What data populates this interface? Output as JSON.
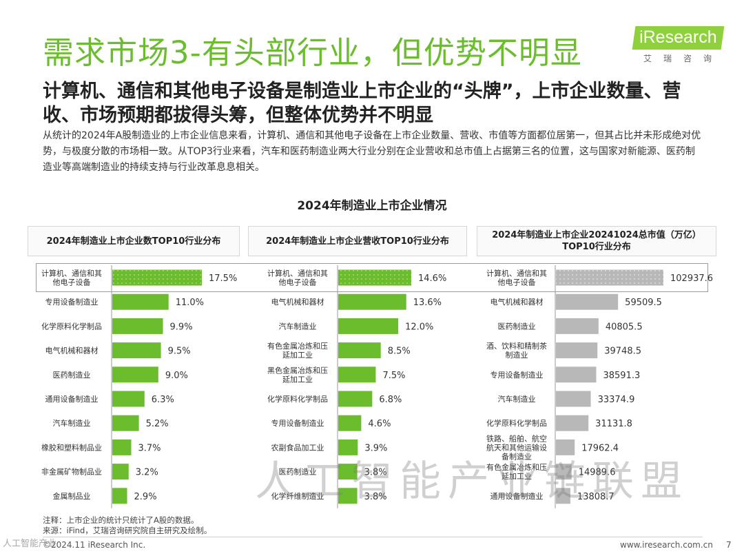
{
  "header": {
    "title": "需求市场3-有头部行业，但优势不明显",
    "logo_text": "iResearch",
    "logo_sub": "艾瑞咨询"
  },
  "subtitle": "计算机、通信和其他电子设备是制造业上市企业的“头牌”，上市企业数量、营收、市场预期都拔得头筹，但整体优势并不明显",
  "body": "从统计的2024年A股制造业的上市企业信息来看，计算机、通信和其他电子设备在上市企业数量、营收、市值等方面都位居第一，但其占比并未形成绝对优势，与极度分散的市场相一致。从TOP3行业来看，汽车和医药制造业两大行业分别在企业营收和总市值上占据第三名的位置，这与国家对新能源、医药制造业等高端制造业的持续支持与行业改革息息相关。",
  "figure_title": "2024年制造业上市企业情况",
  "colors": {
    "green": "#6cbd2e",
    "green_dark": "#5aab22",
    "gray": "#b8b8b8",
    "gray_dark": "#a8a8a8"
  },
  "chart_data": [
    {
      "type": "bar",
      "orientation": "horizontal",
      "title": "2024年制造业上市企业数TOP10行业分布",
      "categories": [
        "计算机、通信和其他电子设备",
        "专用设备制造业",
        "化学原料化学制品",
        "电气机械和器材",
        "医药制造业",
        "通用设备制造业",
        "汽车制造业",
        "橡胶和塑料制品业",
        "非金属矿物制品业",
        "金属制品业"
      ],
      "category_lines": [
        [
          "计算机、通信和其",
          "他电子设备"
        ],
        [
          "专用设备制造业"
        ],
        [
          "化学原料化学制品"
        ],
        [
          "电气机械和器材"
        ],
        [
          "医药制造业"
        ],
        [
          "通用设备制造业"
        ],
        [
          "汽车制造业"
        ],
        [
          "橡胶和塑料制品业"
        ],
        [
          "非金属矿物制品业"
        ],
        [
          "金属制品业"
        ]
      ],
      "values": [
        17.5,
        11.0,
        9.9,
        9.5,
        9.0,
        6.3,
        5.2,
        3.7,
        3.2,
        2.9
      ],
      "labels": [
        "17.5%",
        "11.0%",
        "9.9%",
        "9.5%",
        "9.0%",
        "6.3%",
        "5.2%",
        "3.7%",
        "3.2%",
        "2.9%"
      ],
      "color": "#6cbd2e",
      "max": 17.5
    },
    {
      "type": "bar",
      "orientation": "horizontal",
      "title": "2024年制造业上市企业营收TOP10行业分布",
      "categories": [
        "计算机、通信和其他电子设备",
        "电气机械和器材",
        "汽车制造业",
        "有色金属冶炼和压延加工业",
        "黑色金属冶炼和压延加工业",
        "化学原料化学制品",
        "专用设备制造业",
        "农副食品加工业",
        "医药制造业",
        "化学纤维制造业"
      ],
      "category_lines": [
        [
          "计算机、通信和其",
          "他电子设备"
        ],
        [
          "电气机械和器材"
        ],
        [
          "汽车制造业"
        ],
        [
          "有色金属冶炼和压",
          "延加工业"
        ],
        [
          "黑色金属冶炼和压",
          "延加工业"
        ],
        [
          "化学原料化学制品"
        ],
        [
          "专用设备制造业"
        ],
        [
          "农副食品加工业"
        ],
        [
          "医药制造业"
        ],
        [
          "化学纤维制造业"
        ]
      ],
      "values": [
        14.6,
        13.6,
        12.0,
        8.5,
        7.5,
        6.8,
        4.6,
        3.9,
        3.8,
        3.8
      ],
      "labels": [
        "14.6%",
        "13.6%",
        "12.0%",
        "8.5%",
        "7.5%",
        "6.8%",
        "4.6%",
        "3.9%",
        "3.8%",
        "3.8%"
      ],
      "color": "#6cbd2e",
      "max": 14.6
    },
    {
      "type": "bar",
      "orientation": "horizontal",
      "title": "2024年制造业上市企业20241024总市值（万亿）TOP10行业分布",
      "title_lines": [
        "2024年制造业上市企业20241024总市值（万亿）",
        "TOP10行业分布"
      ],
      "categories": [
        "计算机、通信和其他电子设备",
        "电气机械和器材",
        "医药制造业",
        "酒、饮料和精制茶制造业",
        "专用设备制造业",
        "汽车制造业",
        "化学原料化学制品",
        "铁路、船舶、航空航天和其他运输设备制造业",
        "有色金属冶炼和压延加工业",
        "通用设备制造业"
      ],
      "category_lines": [
        [
          "计算机、通信和其",
          "他电子设备"
        ],
        [
          "电气机械和器材"
        ],
        [
          "医药制造业"
        ],
        [
          "酒、饮料和精制茶",
          "制造业"
        ],
        [
          "专用设备制造业"
        ],
        [
          "汽车制造业"
        ],
        [
          "化学原料化学制品"
        ],
        [
          "铁路、船舶、航空",
          "航天和其他运输设",
          "备制造业"
        ],
        [
          "有色金属冶炼和压",
          "延加工业"
        ],
        [
          "通用设备制造业"
        ]
      ],
      "values": [
        102937.6,
        59509.5,
        40805.5,
        39748.5,
        38591.3,
        33374.9,
        31131.8,
        17962.4,
        14989.6,
        13808.7
      ],
      "labels": [
        "102937.6",
        "59509.5",
        "40805.5",
        "39748.5",
        "38591.3",
        "33374.9",
        "31131.8",
        "17962.4",
        "14989.6",
        "13808.7"
      ],
      "color": "#b8b8b8",
      "max": 102937.6
    }
  ],
  "notes": {
    "note": "注释：上市企业的统计只统计了A股的数据。",
    "source": "来源：iFind，艾瑞咨询研究院自主研究及绘制。"
  },
  "footer": {
    "copyright": "©2024.11 iResearch Inc.",
    "url": "www.iresearch.com.cn",
    "page": "7"
  },
  "watermark": "人工智能产业链联盟",
  "watermark_badge": "人工智能产业"
}
